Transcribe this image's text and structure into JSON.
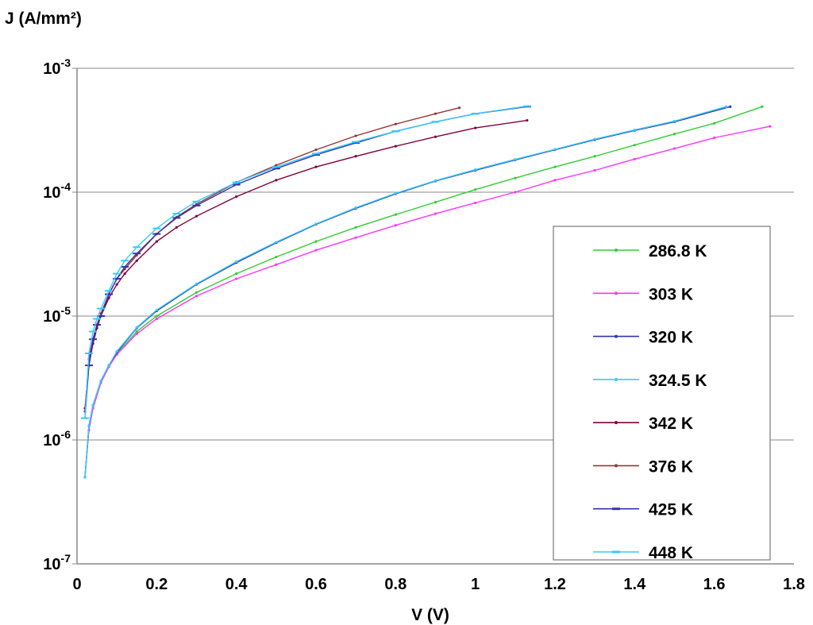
{
  "chart_data": {
    "type": "line",
    "ylabel": "J (A/mm²)",
    "xlabel": "V (V)",
    "yscale": "log",
    "xlim": [
      0,
      1.8
    ],
    "ylim_exp": [
      -7,
      -3
    ],
    "xticks": [
      "0",
      "0.2",
      "0.4",
      "0.6",
      "0.8",
      "1",
      "1.2",
      "1.4",
      "1.6",
      "1.8"
    ],
    "yticks": [
      {
        "base": "10",
        "exp": "-7"
      },
      {
        "base": "10",
        "exp": "-6"
      },
      {
        "base": "10",
        "exp": "-5"
      },
      {
        "base": "10",
        "exp": "-4"
      },
      {
        "base": "10",
        "exp": "-3"
      }
    ],
    "grid": "horizontal",
    "legend": "right",
    "series": [
      {
        "name": "286.8 K",
        "color": "#33cc33",
        "marker": "dot",
        "x": [
          0.02,
          0.03,
          0.04,
          0.06,
          0.08,
          0.1,
          0.15,
          0.2,
          0.3,
          0.4,
          0.5,
          0.6,
          0.7,
          0.8,
          0.9,
          1.0,
          1.1,
          1.2,
          1.3,
          1.4,
          1.5,
          1.6,
          1.72
        ],
        "y": [
          5e-07,
          1.3e-06,
          1.9e-06,
          3e-06,
          4e-06,
          5e-06,
          7.5e-06,
          1e-05,
          1.55e-05,
          2.2e-05,
          3e-05,
          4e-05,
          5.2e-05,
          6.6e-05,
          8.3e-05,
          0.000105,
          0.00013,
          0.00016,
          0.000195,
          0.00024,
          0.000295,
          0.00036,
          0.00049
        ]
      },
      {
        "name": "303 K",
        "color": "#ff33ff",
        "marker": "dot",
        "x": [
          0.02,
          0.03,
          0.04,
          0.06,
          0.08,
          0.1,
          0.15,
          0.2,
          0.3,
          0.4,
          0.5,
          0.6,
          0.7,
          0.8,
          0.9,
          1.0,
          1.1,
          1.2,
          1.3,
          1.4,
          1.5,
          1.6,
          1.74
        ],
        "y": [
          5e-07,
          1.2e-06,
          1.8e-06,
          2.9e-06,
          3.9e-06,
          4.9e-06,
          7.2e-06,
          9.5e-06,
          1.45e-05,
          2e-05,
          2.6e-05,
          3.4e-05,
          4.3e-05,
          5.4e-05,
          6.7e-05,
          8.2e-05,
          0.0001,
          0.000125,
          0.00015,
          0.000185,
          0.000225,
          0.000275,
          0.00034
        ]
      },
      {
        "name": "320 K",
        "color": "#3333aa",
        "marker": "dot",
        "x": [
          0.02,
          0.03,
          0.04,
          0.06,
          0.08,
          0.1,
          0.15,
          0.2,
          0.3,
          0.4,
          0.5,
          0.6,
          0.7,
          0.8,
          0.9,
          1.0,
          1.1,
          1.2,
          1.3,
          1.4,
          1.5,
          1.64
        ],
        "y": [
          5e-07,
          1.3e-06,
          1.9e-06,
          3e-06,
          4e-06,
          5.1e-06,
          8e-06,
          1.1e-05,
          1.8e-05,
          2.7e-05,
          3.9e-05,
          5.5e-05,
          7.4e-05,
          9.7e-05,
          0.000123,
          0.00015,
          0.000182,
          0.00022,
          0.000265,
          0.000315,
          0.00037,
          0.00049
        ]
      },
      {
        "name": "324.5 K",
        "color": "#33ccff",
        "marker": "dot",
        "x": [
          0.02,
          0.03,
          0.04,
          0.06,
          0.08,
          0.1,
          0.15,
          0.2,
          0.3,
          0.4,
          0.5,
          0.6,
          0.7,
          0.8,
          0.9,
          1.0,
          1.1,
          1.2,
          1.3,
          1.4,
          1.5,
          1.63
        ],
        "y": [
          5e-07,
          1.3e-06,
          1.9e-06,
          3e-06,
          4e-06,
          5.2e-06,
          8.1e-06,
          1.12e-05,
          1.82e-05,
          2.75e-05,
          3.95e-05,
          5.55e-05,
          7.5e-05,
          9.8e-05,
          0.000124,
          0.000152,
          0.000184,
          0.000222,
          0.000268,
          0.000318,
          0.000375,
          0.00049
        ]
      },
      {
        "name": "342 K",
        "color": "#800040",
        "marker": "dot",
        "x": [
          0.02,
          0.03,
          0.04,
          0.05,
          0.06,
          0.08,
          0.1,
          0.12,
          0.15,
          0.2,
          0.25,
          0.3,
          0.4,
          0.5,
          0.6,
          0.7,
          0.8,
          0.9,
          1.0,
          1.13
        ],
        "y": [
          1.8e-06,
          4e-06,
          6e-06,
          8e-06,
          1e-05,
          1.4e-05,
          1.8e-05,
          2.2e-05,
          2.8e-05,
          4e-05,
          5.2e-05,
          6.4e-05,
          9.2e-05,
          0.000125,
          0.00016,
          0.000195,
          0.000235,
          0.00028,
          0.00033,
          0.00038
        ]
      },
      {
        "name": "376 K",
        "color": "#993333",
        "marker": "dot",
        "x": [
          0.02,
          0.03,
          0.04,
          0.05,
          0.06,
          0.08,
          0.1,
          0.12,
          0.15,
          0.2,
          0.25,
          0.3,
          0.4,
          0.5,
          0.6,
          0.7,
          0.8,
          0.9,
          0.96
        ],
        "y": [
          1.7e-06,
          4.5e-06,
          6.5e-06,
          8.5e-06,
          1.05e-05,
          1.5e-05,
          2e-05,
          2.4e-05,
          3.1e-05,
          4.6e-05,
          6.3e-05,
          8e-05,
          0.00012,
          0.000165,
          0.00022,
          0.000285,
          0.000355,
          0.00043,
          0.00048
        ]
      },
      {
        "name": "425 K",
        "color": "#3333aa",
        "marker": "dash",
        "x": [
          0.02,
          0.03,
          0.04,
          0.05,
          0.06,
          0.08,
          0.1,
          0.12,
          0.15,
          0.2,
          0.25,
          0.3,
          0.4,
          0.5,
          0.6,
          0.7,
          0.8,
          0.9,
          1.0,
          1.13
        ],
        "y": [
          1.5e-06,
          4e-06,
          6.5e-06,
          8.5e-06,
          1e-05,
          1.5e-05,
          2e-05,
          2.5e-05,
          3.2e-05,
          4.6e-05,
          6.2e-05,
          7.8e-05,
          0.000115,
          0.000155,
          0.0002,
          0.00025,
          0.00031,
          0.00037,
          0.00043,
          0.00049
        ]
      },
      {
        "name": "448 K",
        "color": "#33ccff",
        "marker": "dash",
        "x": [
          0.02,
          0.03,
          0.04,
          0.05,
          0.06,
          0.08,
          0.1,
          0.12,
          0.15,
          0.2,
          0.25,
          0.3,
          0.4,
          0.5,
          0.6,
          0.7,
          0.8,
          0.9,
          1.0,
          1.13
        ],
        "y": [
          1.5e-06,
          5e-06,
          7.5e-06,
          9.5e-06,
          1.15e-05,
          1.6e-05,
          2.2e-05,
          2.8e-05,
          3.6e-05,
          5.1e-05,
          6.7e-05,
          8.4e-05,
          0.00012,
          0.00016,
          0.000205,
          0.000255,
          0.00031,
          0.00037,
          0.00043,
          0.000495
        ]
      }
    ]
  }
}
